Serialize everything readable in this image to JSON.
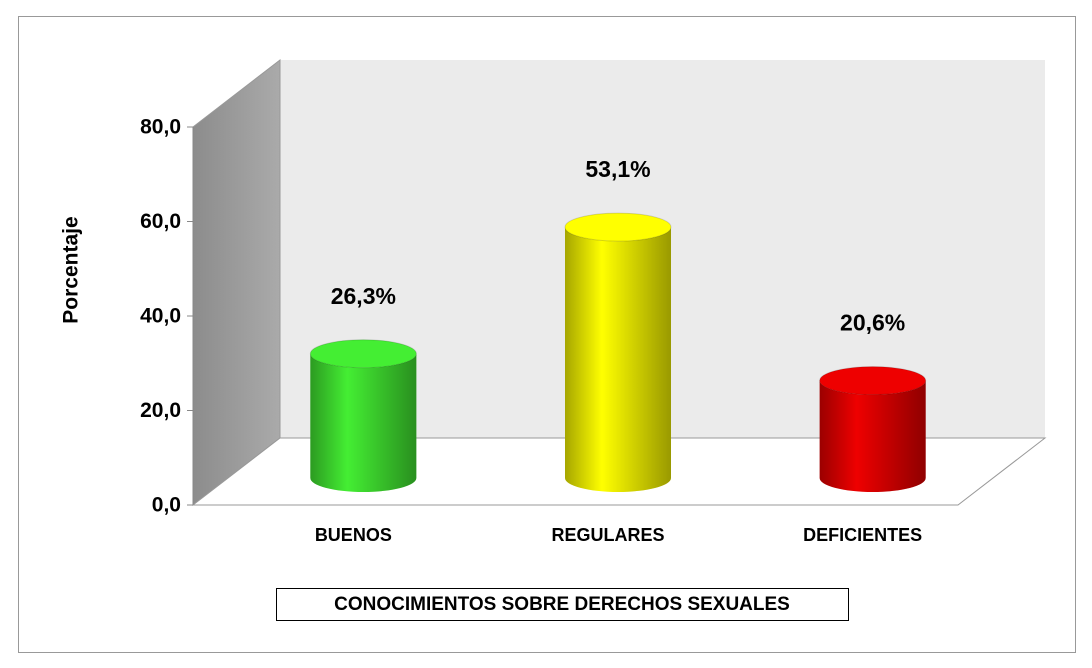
{
  "chart_data": {
    "type": "bar3d",
    "x_label": "CONOCIMIENTOS SOBRE DERECHOS SEXUALES",
    "y_label": "Porcentaje",
    "categories": [
      "BUENOS",
      "REGULARES",
      "DEFICIENTES"
    ],
    "values": [
      26.3,
      53.1,
      20.6
    ],
    "value_labels": [
      "26,3%",
      "53,1%",
      "20,6%"
    ],
    "colors": [
      "#44ee33",
      "#ffff00",
      "#ee0000"
    ],
    "ylim": [
      0,
      80
    ],
    "yticks": [
      {
        "value": 0,
        "label": "0,0"
      },
      {
        "value": 20,
        "label": "20,0"
      },
      {
        "value": 40,
        "label": "40,0"
      },
      {
        "value": 60,
        "label": "60,0"
      },
      {
        "value": 80,
        "label": "80,0"
      }
    ]
  }
}
